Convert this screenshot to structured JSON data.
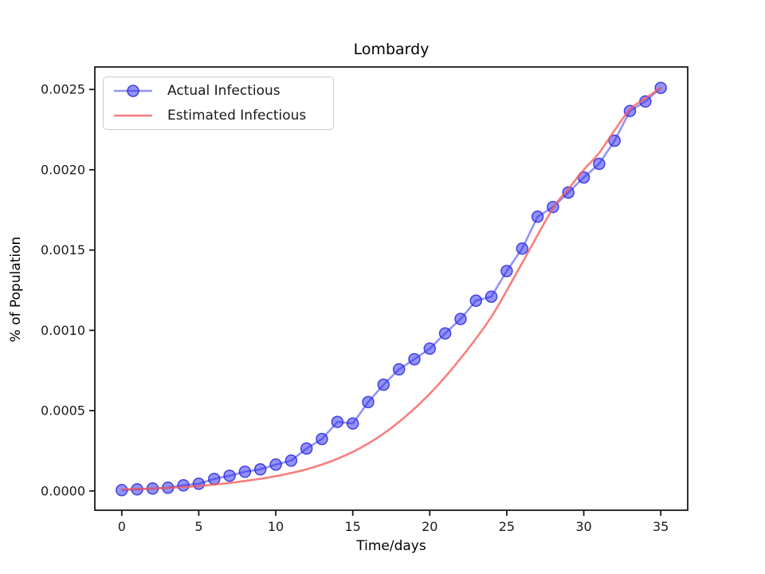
{
  "chart_data": {
    "type": "line",
    "title": "Lombardy",
    "xlabel": "Time/days",
    "ylabel": "% of Population",
    "xlim": [
      -1.75,
      36.75
    ],
    "ylim": [
      -0.00012,
      0.00264
    ],
    "grid": false,
    "legend_position": "upper left",
    "x_tick_values": [
      0,
      5,
      10,
      15,
      20,
      25,
      30,
      35
    ],
    "x_tick_labels": [
      "0",
      "5",
      "10",
      "15",
      "20",
      "25",
      "30",
      "35"
    ],
    "y_tick_values": [
      0.0,
      0.0005,
      0.001,
      0.0015,
      0.002,
      0.0025
    ],
    "y_tick_labels": [
      "0.0000",
      "0.0005",
      "0.0010",
      "0.0015",
      "0.0020",
      "0.0025"
    ],
    "series": [
      {
        "name": "Actual Infectious",
        "style": "line+markers",
        "marker": "circle",
        "color": "#2828f0",
        "x": [
          0,
          1,
          2,
          3,
          4,
          5,
          6,
          7,
          8,
          9,
          10,
          11,
          12,
          13,
          14,
          15,
          16,
          17,
          18,
          19,
          20,
          21,
          22,
          23,
          24,
          25,
          26,
          27,
          28,
          29,
          30,
          31,
          32,
          33,
          34,
          35
        ],
        "values": [
          5e-06,
          1e-05,
          1.5e-05,
          2e-05,
          3.5e-05,
          4.5e-05,
          7.5e-05,
          9.5e-05,
          0.00012,
          0.000134,
          0.000164,
          0.000189,
          0.000264,
          0.000324,
          0.00043,
          0.00042,
          0.000553,
          0.000662,
          0.000757,
          0.00082,
          0.000886,
          0.000981,
          0.001071,
          0.001185,
          0.00121,
          0.001369,
          0.001509,
          0.001708,
          0.001768,
          0.001858,
          0.001952,
          0.002037,
          0.002181,
          0.002366,
          0.002425,
          0.00251
        ]
      },
      {
        "name": "Estimated Infectious",
        "style": "line",
        "marker": "none",
        "color": "#f86e6e",
        "x": [
          0,
          2,
          4,
          6,
          8,
          10,
          12,
          14,
          16,
          18,
          20,
          22,
          24,
          26,
          28,
          29,
          30,
          31,
          32,
          33,
          34,
          35
        ],
        "values": [
          1e-05,
          1.5e-05,
          2.4e-05,
          4e-05,
          6.2e-05,
          9.2e-05,
          0.000135,
          0.0002,
          0.000295,
          0.00043,
          0.000605,
          0.000825,
          0.001085,
          0.00142,
          0.00176,
          0.00188,
          0.002,
          0.002105,
          0.002245,
          0.002375,
          0.002445,
          0.00251
        ]
      }
    ]
  }
}
